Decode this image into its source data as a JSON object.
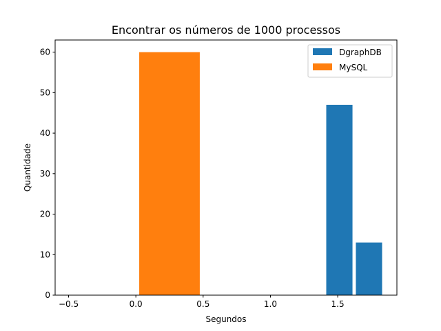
{
  "chart_data": {
    "type": "bar",
    "title": "Encontrar os números de 1000 processos",
    "xlabel": "Segundos",
    "ylabel": "Quantidade",
    "xlim": [
      -0.6,
      1.94
    ],
    "ylim": [
      0,
      63
    ],
    "xticks": [
      -0.5,
      0.0,
      0.5,
      1.0,
      1.5
    ],
    "xtick_labels": [
      "−0.5",
      "0.0",
      "0.5",
      "1.0",
      "1.5"
    ],
    "yticks": [
      0,
      10,
      20,
      30,
      40,
      50,
      60
    ],
    "yticks_labels": [
      "0",
      "10",
      "20",
      "30",
      "40",
      "50",
      "60"
    ],
    "grid": false,
    "legend_position": "top-right",
    "series": [
      {
        "name": "DgraphDB",
        "color": "#1f77b4",
        "bars": [
          {
            "x_start": 1.415,
            "x_end": 1.61,
            "value": 47
          },
          {
            "x_start": 1.635,
            "x_end": 1.83,
            "value": 13
          }
        ]
      },
      {
        "name": "MySQL",
        "color": "#ff7f0e",
        "bars": [
          {
            "x_start": 0.025,
            "x_end": 0.475,
            "value": 60
          }
        ]
      }
    ]
  }
}
